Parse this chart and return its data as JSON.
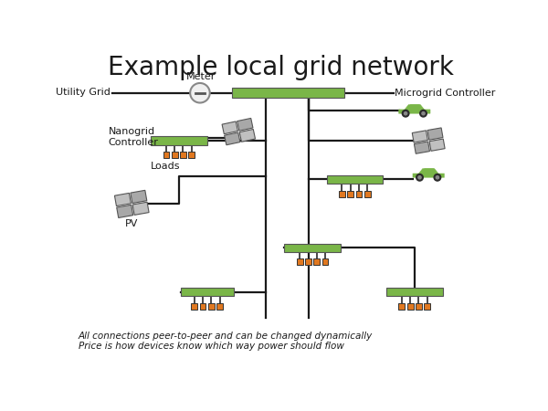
{
  "title": "Example local grid network",
  "title_fontsize": 20,
  "bg_color": "#ffffff",
  "line_color": "#1a1a1a",
  "green_color": "#7ab648",
  "orange_color": "#e07820",
  "text_color": "#1a1a1a",
  "footnote1": "All connections peer-to-peer and can be changed dynamically",
  "footnote2": "Price is how devices know which way power should flow",
  "labels": {
    "utility_grid": "Utility Grid",
    "meter": "Meter",
    "microgrid_controller": "Microgrid Controller",
    "nanogrid_controller": "Nanogrid\nController",
    "loads": "Loads",
    "pv": "PV"
  }
}
